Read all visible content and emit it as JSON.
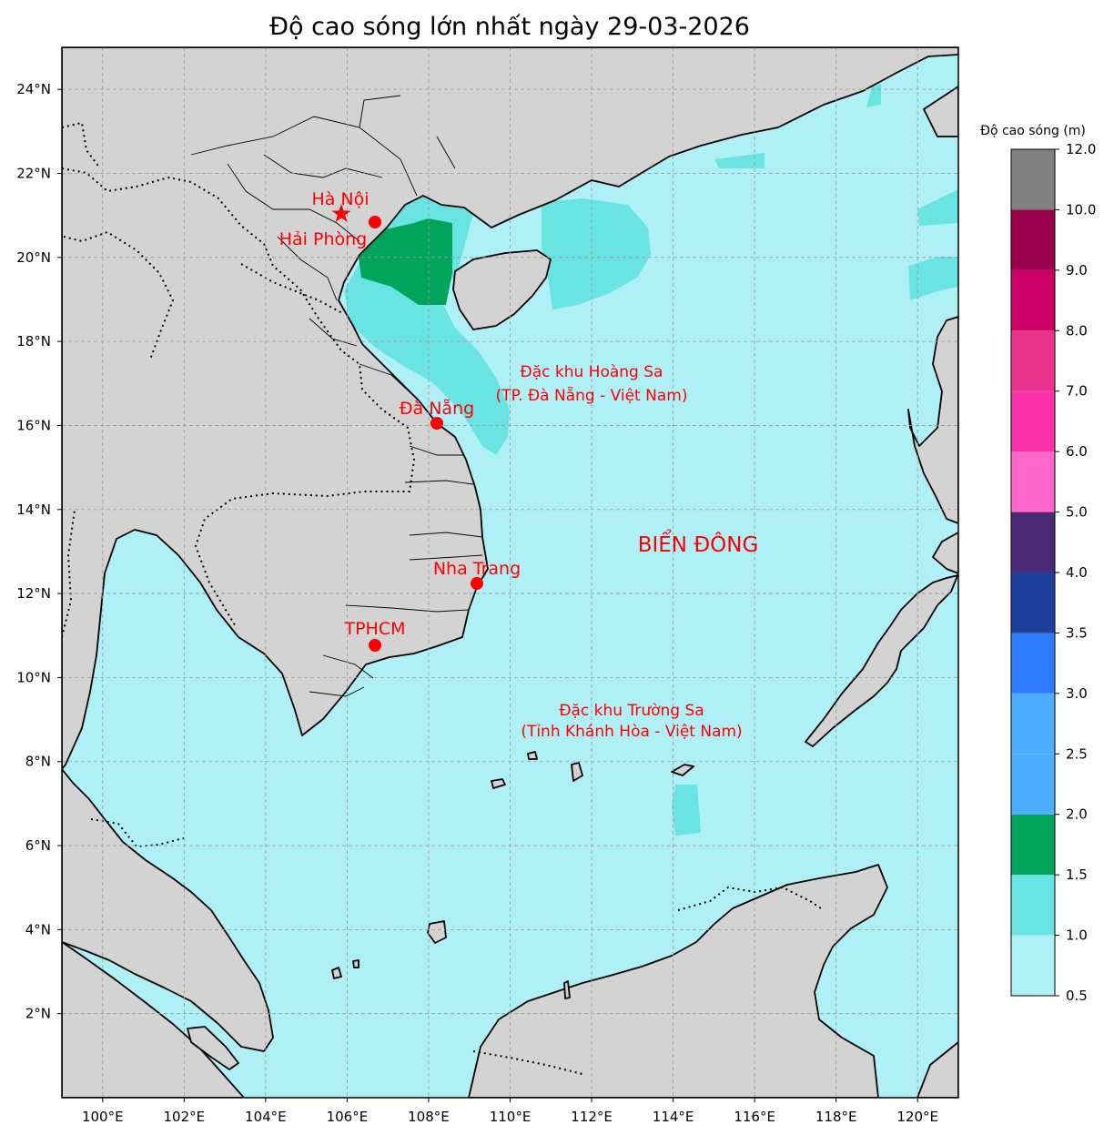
{
  "map": {
    "title": "Độ cao sóng lớn nhất ngày 29-03-2026",
    "extent": {
      "lon": [
        99,
        121
      ],
      "lat": [
        0,
        25
      ]
    },
    "lon_ticks": [
      {
        "value": 100,
        "label": "100°E"
      },
      {
        "value": 102,
        "label": "102°E"
      },
      {
        "value": 104,
        "label": "104°E"
      },
      {
        "value": 106,
        "label": "106°E"
      },
      {
        "value": 108,
        "label": "108°E"
      },
      {
        "value": 110,
        "label": "110°E"
      },
      {
        "value": 112,
        "label": "112°E"
      },
      {
        "value": 114,
        "label": "114°E"
      },
      {
        "value": 116,
        "label": "116°E"
      },
      {
        "value": 118,
        "label": "118°E"
      },
      {
        "value": 120,
        "label": "120°E"
      }
    ],
    "lat_ticks": [
      {
        "value": 2,
        "label": "2°N"
      },
      {
        "value": 4,
        "label": "4°N"
      },
      {
        "value": 6,
        "label": "6°N"
      },
      {
        "value": 8,
        "label": "8°N"
      },
      {
        "value": 10,
        "label": "10°N"
      },
      {
        "value": 12,
        "label": "12°N"
      },
      {
        "value": 14,
        "label": "14°N"
      },
      {
        "value": 16,
        "label": "16°N"
      },
      {
        "value": 18,
        "label": "18°N"
      },
      {
        "value": 20,
        "label": "20°N"
      },
      {
        "value": 22,
        "label": "22°N"
      },
      {
        "value": 24,
        "label": "24°N"
      }
    ],
    "cities": [
      {
        "name": "Hà Nội",
        "lon": 105.85,
        "lat": 21.03,
        "marker": "star"
      },
      {
        "name": "Hải Phòng",
        "lon": 106.68,
        "lat": 20.86,
        "marker": "circle"
      },
      {
        "name": "Đà Nẵng",
        "lon": 108.22,
        "lat": 16.07,
        "marker": "circle"
      },
      {
        "name": "Nha Trang",
        "lon": 109.19,
        "lat": 12.24,
        "marker": "circle"
      },
      {
        "name": "TPHCM",
        "lon": 106.66,
        "lat": 10.78,
        "marker": "circle"
      }
    ],
    "regions": [
      {
        "line1": "Đặc khu Hoàng Sa",
        "line2": "(TP. Đà Nẵng - Việt Nam)",
        "lon": 112.0,
        "lat": 16.9
      },
      {
        "line1": "Đặc khu Trường Sa",
        "line2": "(Tỉnh Khánh Hòa - Việt Nam)",
        "lon": 114.0,
        "lat": 8.9
      }
    ],
    "sea_label": {
      "text": "BIỂN ĐÔNG",
      "lon": 114.6,
      "lat": 13.1
    },
    "colors": {
      "land": "#d3d3d3",
      "marker": "#ff0000",
      "wave_05_10": "#aff0f7",
      "wave_10_15": "#6ae3e3",
      "wave_15_20": "#00a55b"
    }
  },
  "colorbar": {
    "title": "Độ cao sóng (m)",
    "bins": [
      {
        "from": 0.5,
        "to": 1.0,
        "color": "#aff0f7"
      },
      {
        "from": 1.0,
        "to": 1.5,
        "color": "#6ae3e3"
      },
      {
        "from": 1.5,
        "to": 2.0,
        "color": "#00a55b"
      },
      {
        "from": 2.0,
        "to": 2.5,
        "color": "#4dadff"
      },
      {
        "from": 2.5,
        "to": 3.0,
        "color": "#4dadff"
      },
      {
        "from": 3.0,
        "to": 3.5,
        "color": "#2f7bff"
      },
      {
        "from": 3.5,
        "to": 4.0,
        "color": "#1e3f9a"
      },
      {
        "from": 4.0,
        "to": 5.0,
        "color": "#4a2a74"
      },
      {
        "from": 5.0,
        "to": 6.0,
        "color": "#ff66c8"
      },
      {
        "from": 6.0,
        "to": 7.0,
        "color": "#ff33a9"
      },
      {
        "from": 7.0,
        "to": 8.0,
        "color": "#e8338c"
      },
      {
        "from": 8.0,
        "to": 9.0,
        "color": "#cc0066"
      },
      {
        "from": 9.0,
        "to": 10.0,
        "color": "#990049"
      },
      {
        "from": 10.0,
        "to": 12.0,
        "color": "#808080"
      }
    ],
    "tick_labels": [
      "0.5",
      "1.0",
      "1.5",
      "2.0",
      "2.5",
      "3.0",
      "3.5",
      "4.0",
      "5.0",
      "6.0",
      "7.0",
      "8.0",
      "9.0",
      "10.0",
      "12.0"
    ]
  }
}
